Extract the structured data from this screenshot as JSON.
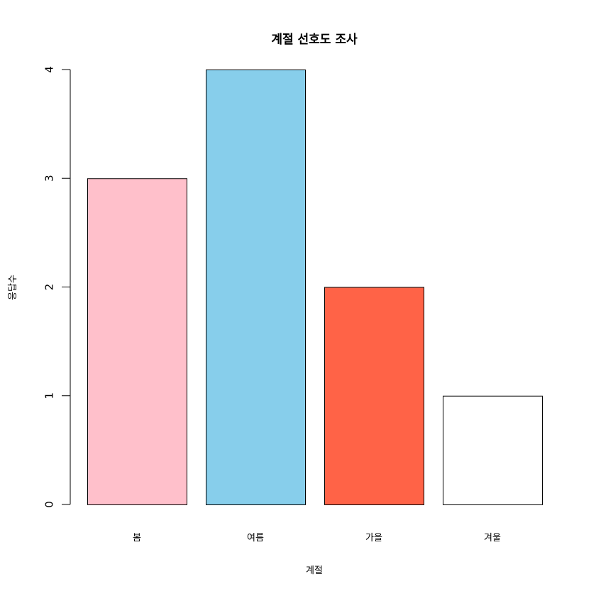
{
  "chart_data": {
    "type": "bar",
    "title": "계절 선호도 조사",
    "xlabel": "계절",
    "ylabel": "응답수",
    "categories": [
      "봄",
      "여름",
      "가을",
      "겨울"
    ],
    "values": [
      3,
      4,
      2,
      1
    ],
    "colors": [
      "#FFC0CB",
      "#87CEEB",
      "#FF6347",
      "#FFFFFF"
    ],
    "ylim": [
      0,
      4
    ],
    "yticks": [
      "0",
      "1",
      "2",
      "3",
      "4"
    ],
    "grid": false,
    "legend": "none"
  }
}
